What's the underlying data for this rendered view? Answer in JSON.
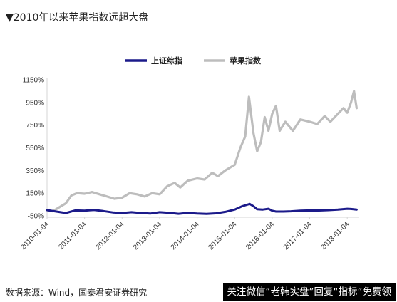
{
  "title": "▼2010年以来苹果指数远超大盘",
  "source": "数据来源：Wind，国泰君安证券研究",
  "banner": "关注微信“老韩实盘”回复“指标”免费领",
  "colors": {
    "series1": "#1b1a8a",
    "series2": "#bdbdbd",
    "axis": "#d6d6d6"
  },
  "chart_data": {
    "type": "line",
    "title": "",
    "xlabel": "",
    "ylabel": "",
    "ylim": [
      -50,
      1150
    ],
    "y_ticks": [
      "1150%",
      "950%",
      "750%",
      "550%",
      "350%",
      "150%",
      "-50%"
    ],
    "y_tick_values": [
      1150,
      950,
      750,
      550,
      350,
      150,
      -50
    ],
    "x_ticks": [
      "2010-01-04",
      "2011-01-04",
      "2012-01-04",
      "2013-01-04",
      "2014-01-04",
      "2015-01-04",
      "2016-01-04",
      "2017-01-04",
      "2018-01-04"
    ],
    "legend_position": "top",
    "grid": false,
    "series": [
      {
        "name": "上证综指",
        "color": "#1b1a8a",
        "points": [
          [
            2010.0,
            0
          ],
          [
            2010.25,
            -12
          ],
          [
            2010.5,
            -25
          ],
          [
            2010.75,
            -2
          ],
          [
            2011.0,
            -5
          ],
          [
            2011.25,
            2
          ],
          [
            2011.5,
            -8
          ],
          [
            2011.75,
            -20
          ],
          [
            2012.0,
            -25
          ],
          [
            2012.25,
            -18
          ],
          [
            2012.5,
            -25
          ],
          [
            2012.75,
            -30
          ],
          [
            2013.0,
            -18
          ],
          [
            2013.25,
            -23
          ],
          [
            2013.5,
            -32
          ],
          [
            2013.75,
            -25
          ],
          [
            2014.0,
            -30
          ],
          [
            2014.25,
            -33
          ],
          [
            2014.5,
            -28
          ],
          [
            2014.75,
            -15
          ],
          [
            2015.0,
            5
          ],
          [
            2015.2,
            35
          ],
          [
            2015.4,
            55
          ],
          [
            2015.5,
            35
          ],
          [
            2015.6,
            8
          ],
          [
            2015.75,
            5
          ],
          [
            2015.9,
            12
          ],
          [
            2016.0,
            -5
          ],
          [
            2016.1,
            -12
          ],
          [
            2016.3,
            -12
          ],
          [
            2016.5,
            -10
          ],
          [
            2016.75,
            -5
          ],
          [
            2017.0,
            -2
          ],
          [
            2017.25,
            -3
          ],
          [
            2017.5,
            0
          ],
          [
            2017.75,
            5
          ],
          [
            2018.0,
            12
          ],
          [
            2018.1,
            10
          ],
          [
            2018.25,
            5
          ]
        ]
      },
      {
        "name": "苹果指数",
        "color": "#bdbdbd",
        "points": [
          [
            2010.0,
            0
          ],
          [
            2010.15,
            -10
          ],
          [
            2010.35,
            30
          ],
          [
            2010.5,
            60
          ],
          [
            2010.65,
            130
          ],
          [
            2010.8,
            150
          ],
          [
            2011.0,
            145
          ],
          [
            2011.2,
            160
          ],
          [
            2011.4,
            140
          ],
          [
            2011.6,
            120
          ],
          [
            2011.8,
            100
          ],
          [
            2012.0,
            110
          ],
          [
            2012.2,
            150
          ],
          [
            2012.4,
            140
          ],
          [
            2012.6,
            120
          ],
          [
            2012.8,
            150
          ],
          [
            2013.0,
            140
          ],
          [
            2013.2,
            210
          ],
          [
            2013.4,
            240
          ],
          [
            2013.55,
            200
          ],
          [
            2013.75,
            260
          ],
          [
            2014.0,
            280
          ],
          [
            2014.2,
            270
          ],
          [
            2014.4,
            330
          ],
          [
            2014.55,
            300
          ],
          [
            2014.75,
            350
          ],
          [
            2015.0,
            400
          ],
          [
            2015.15,
            550
          ],
          [
            2015.28,
            650
          ],
          [
            2015.38,
            1000
          ],
          [
            2015.5,
            680
          ],
          [
            2015.6,
            520
          ],
          [
            2015.7,
            600
          ],
          [
            2015.8,
            820
          ],
          [
            2015.9,
            700
          ],
          [
            2016.0,
            850
          ],
          [
            2016.1,
            920
          ],
          [
            2016.2,
            700
          ],
          [
            2016.35,
            780
          ],
          [
            2016.55,
            700
          ],
          [
            2016.75,
            800
          ],
          [
            2017.0,
            780
          ],
          [
            2017.2,
            760
          ],
          [
            2017.4,
            830
          ],
          [
            2017.55,
            780
          ],
          [
            2017.75,
            850
          ],
          [
            2017.9,
            900
          ],
          [
            2018.0,
            860
          ],
          [
            2018.1,
            950
          ],
          [
            2018.18,
            1050
          ],
          [
            2018.25,
            900
          ]
        ]
      }
    ]
  }
}
